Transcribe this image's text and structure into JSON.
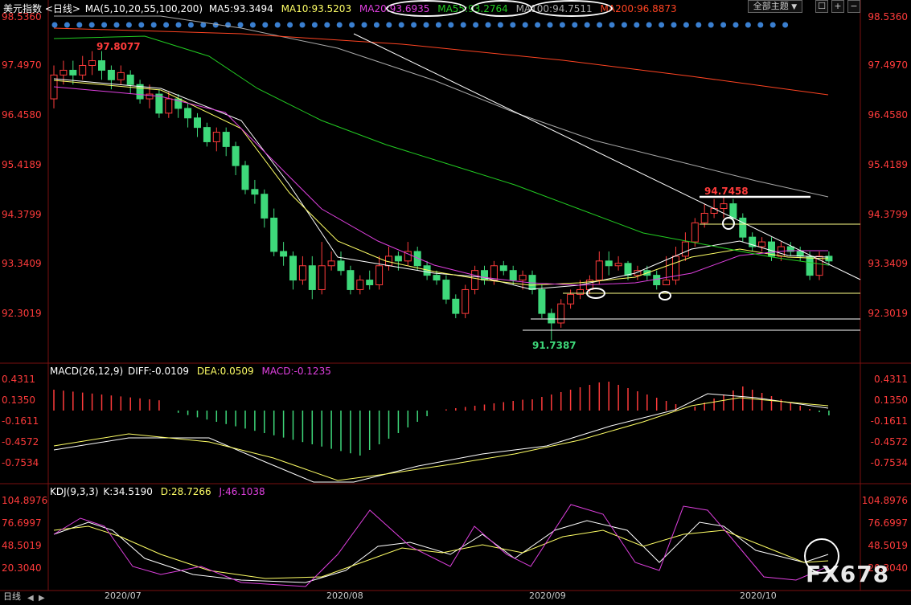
{
  "main_header": {
    "title": "美元指数",
    "period": "<日线>",
    "ma_params": "MA(5,10,20,55,100,200)",
    "ma5": "MA5:93.3494",
    "ma10": "MA10:93.5203",
    "ma20": "MA20:93.6935",
    "ma55": "MA55:93.2764",
    "ma100": "MA100:94.7511",
    "ma200": "MA200:96.8873",
    "theme_button": "全部主题",
    "theme_arrow": "▼"
  },
  "main_axis": [
    "98.5360",
    "97.4970",
    "96.4580",
    "95.4189",
    "94.3799",
    "93.3409",
    "92.3019"
  ],
  "annotations": {
    "high1": "97.8077",
    "high2": "94.7458",
    "low1": "91.7387"
  },
  "macd_header": {
    "params": "MACD(26,12,9)",
    "diff": "DIFF:-0.0109",
    "dea": "DEA:0.0509",
    "macd": "MACD:-0.1235"
  },
  "macd_axis": [
    "0.4311",
    "0.1350",
    "-0.1611",
    "-0.4572",
    "-0.7534"
  ],
  "kdj_header": {
    "params": "KDJ(9,3,3)",
    "k": "K:34.5190",
    "d": "D:28.7266",
    "j": "J:46.1038"
  },
  "kdj_axis": [
    "104.8976",
    "76.6997",
    "48.5019",
    "20.3040"
  ],
  "dates": [
    "2020/07",
    "2020/08",
    "2020/09",
    "2020/10"
  ],
  "footer": {
    "tab": "日线"
  },
  "watermark": "FX678",
  "colors": {
    "up": "#ff3b3b",
    "down": "#3ed87a",
    "ma5": "#ffffff",
    "ma10": "#ffff66",
    "ma20": "#e040e0",
    "ma55": "#22cc22",
    "ma100": "#aaaaaa",
    "ma200": "#ff4422"
  }
}
